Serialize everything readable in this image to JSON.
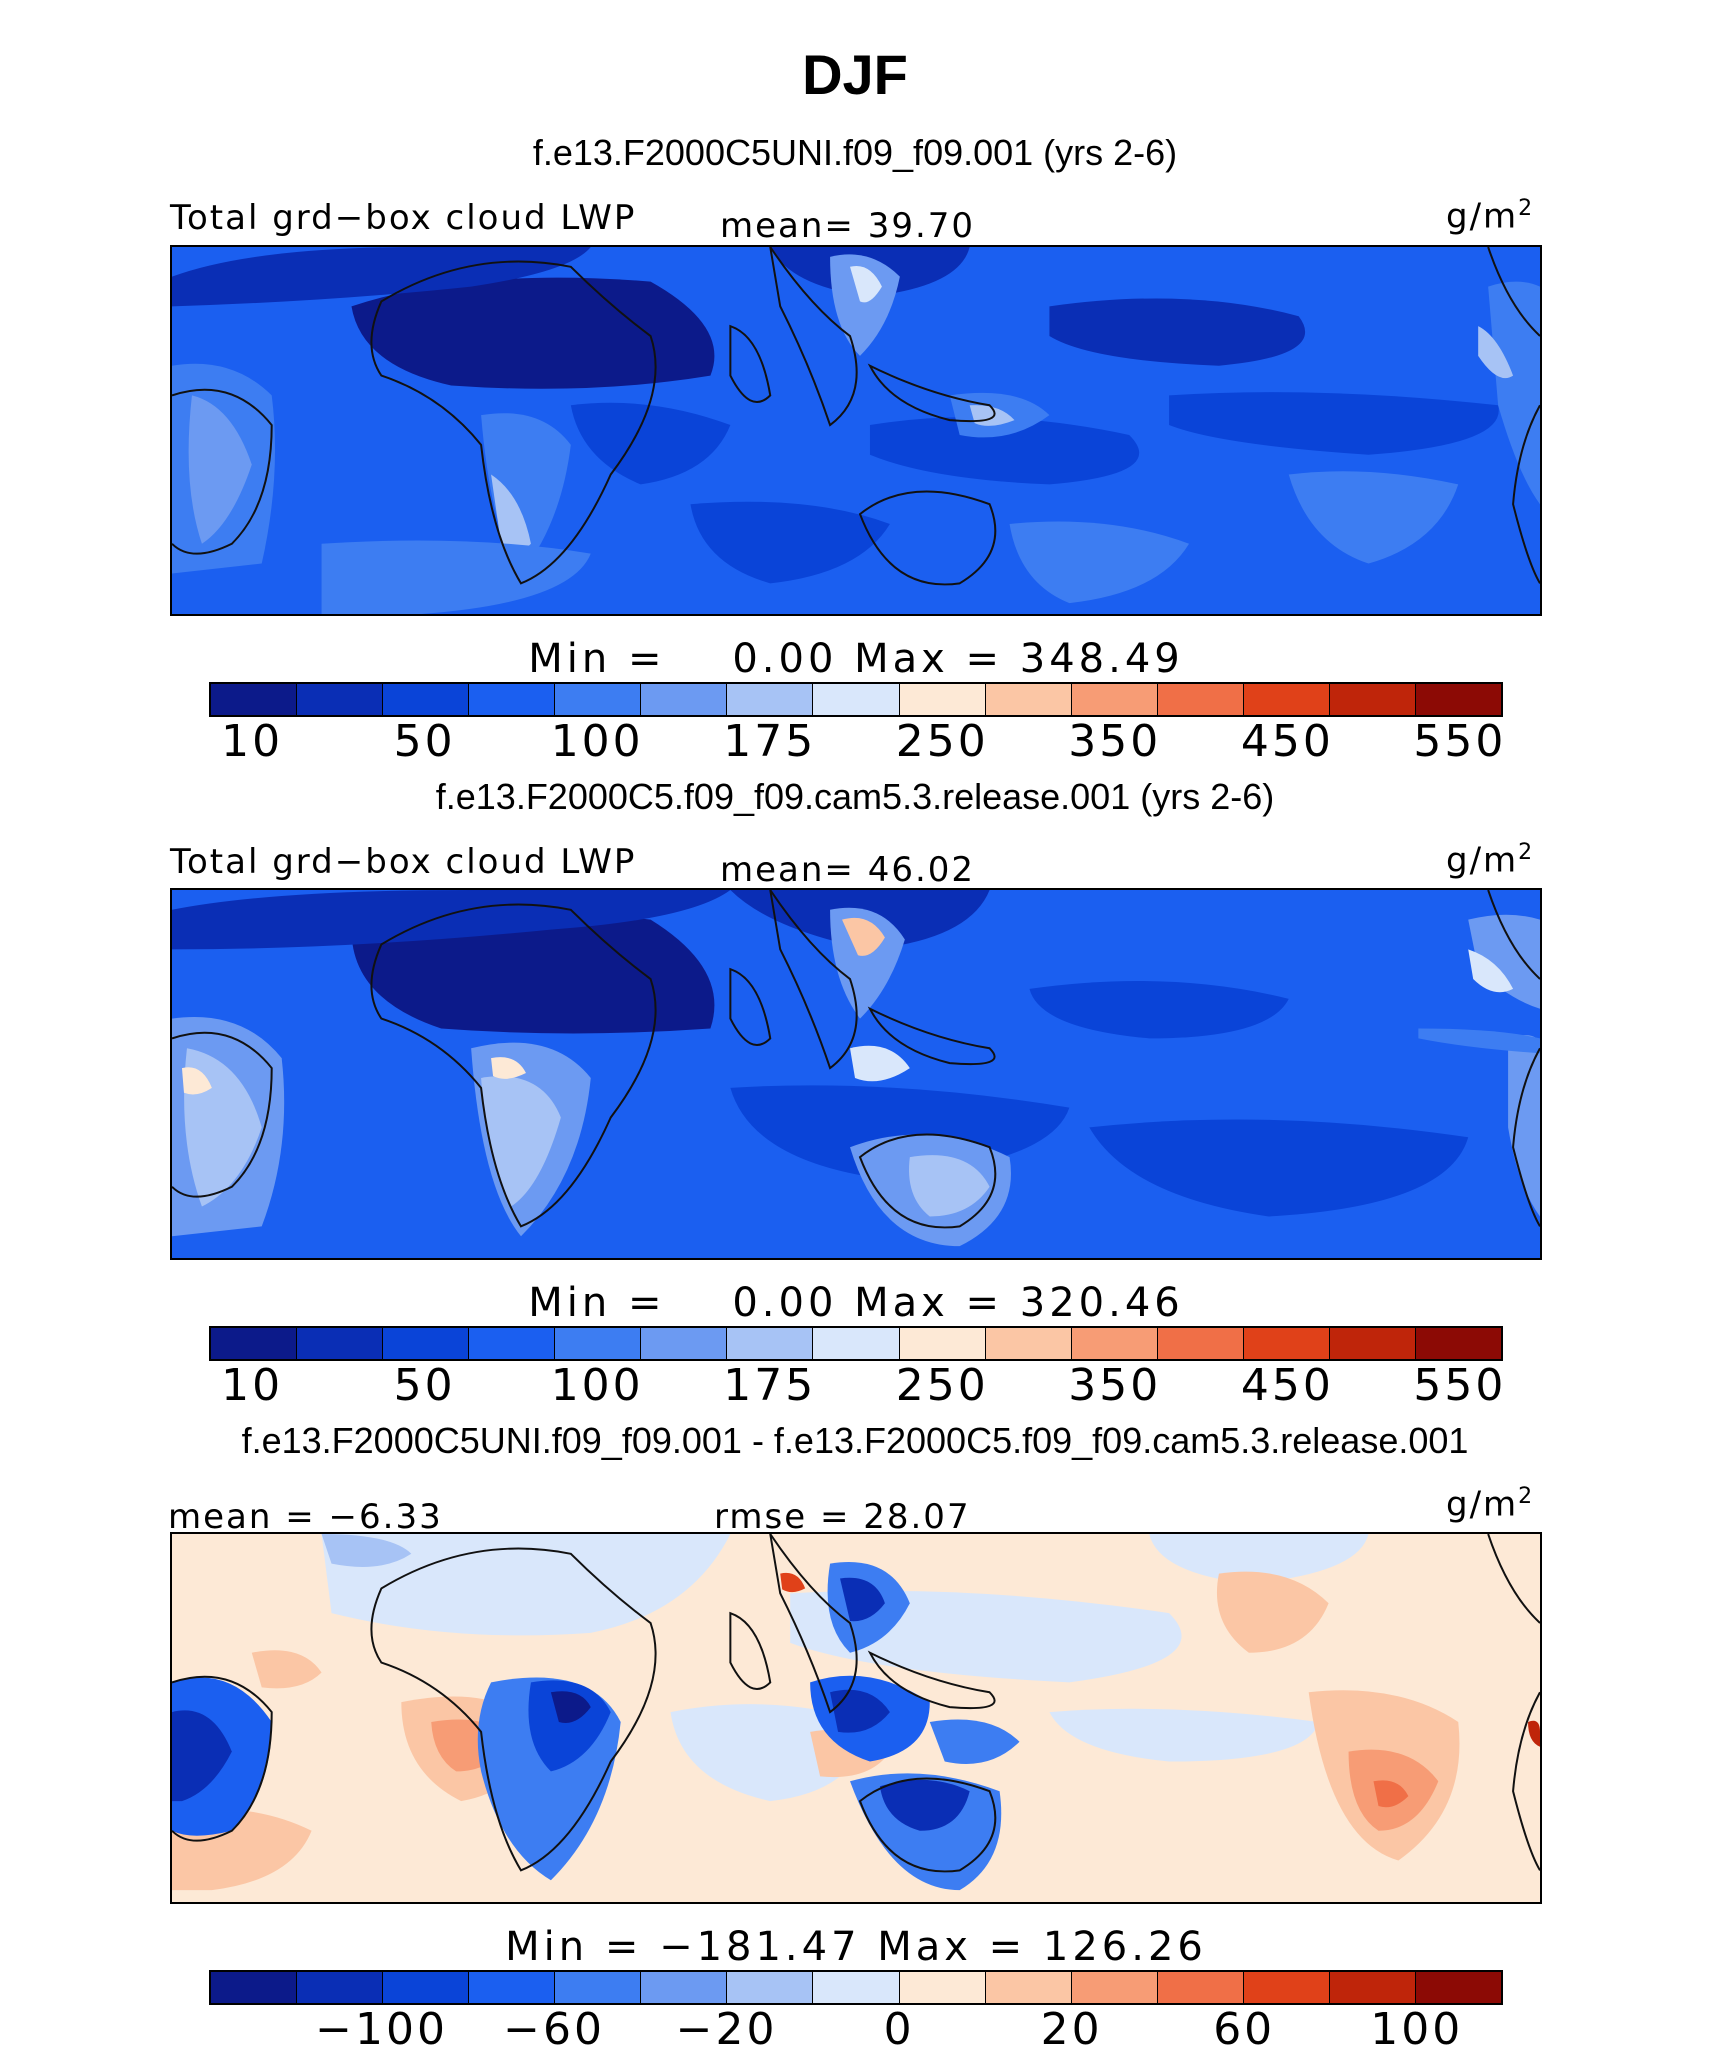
{
  "title": "DJF",
  "colors": {
    "abs_palette": [
      "#0c1a8a",
      "#0a2eb5",
      "#0a44d8",
      "#1b5ff0",
      "#3d7df2",
      "#6c9af2",
      "#a7c3f5",
      "#d9e7fb",
      "#fde9d6",
      "#fbc6a5",
      "#f79c75",
      "#f06f47",
      "#e04119",
      "#bf250a",
      "#8c0a05"
    ],
    "diff_palette": [
      "#0c1a8a",
      "#0a2eb5",
      "#0a44d8",
      "#1b5ff0",
      "#3d7df2",
      "#6c9af2",
      "#a7c3f5",
      "#d9e7fb",
      "#fde9d6",
      "#fbc6a5",
      "#f79c75",
      "#f06f47",
      "#e04119",
      "#bf250a",
      "#8c0a05"
    ],
    "coast": "#111111"
  },
  "panels": [
    {
      "case_title": "f.e13.F2000C5UNI.f09_f09.001 (yrs 2-6)",
      "left_label": "Total grd−box cloud LWP",
      "center_label": "mean=  39.70",
      "unit_base": "g/m",
      "unit_exp": "2",
      "minmax": "Min =    0.00 Max = 348.49",
      "ticks": [
        "10",
        "50",
        "100",
        "175",
        "250",
        "350",
        "450",
        "550"
      ],
      "kind": "abs"
    },
    {
      "case_title": "f.e13.F2000C5.f09_f09.cam5.3.release.001 (yrs 2-6)",
      "left_label": "Total grd−box cloud LWP",
      "center_label": "mean=  46.02",
      "unit_base": "g/m",
      "unit_exp": "2",
      "minmax": "Min =    0.00 Max = 320.46",
      "ticks": [
        "10",
        "50",
        "100",
        "175",
        "250",
        "350",
        "450",
        "550"
      ],
      "kind": "abs"
    },
    {
      "case_title": "f.e13.F2000C5UNI.f09_f09.001 - f.e13.F2000C5.f09_f09.cam5.3.release.001",
      "left_label": "mean =  −6.33",
      "center_label": "rmse =  28.07",
      "unit_base": "g/m",
      "unit_exp": "2",
      "minmax": "Min = −181.47 Max = 126.26",
      "ticks": [
        "−100",
        "−60",
        "−20",
        "0",
        "20",
        "60",
        "100"
      ],
      "kind": "diff"
    }
  ]
}
